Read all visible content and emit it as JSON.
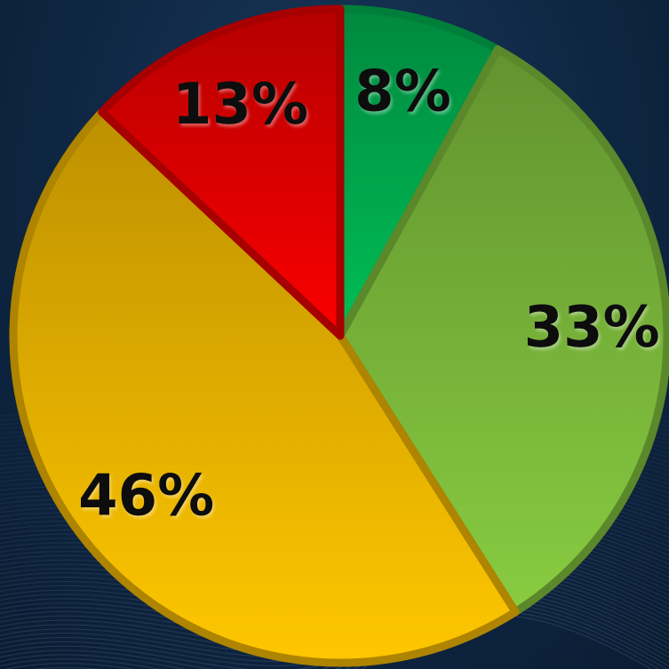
{
  "chart_data": {
    "type": "pie",
    "title": "",
    "slices": [
      {
        "label": "8%",
        "value": 8,
        "color": "#00b050"
      },
      {
        "label": "33%",
        "value": 33,
        "color": "#7ebd3c"
      },
      {
        "label": "46%",
        "value": 46,
        "color": "#f2b800"
      },
      {
        "label": "13%",
        "value": 13,
        "color": "#e80000"
      }
    ],
    "start_angle_deg": 0,
    "direction": "clockwise",
    "legend": "none"
  }
}
